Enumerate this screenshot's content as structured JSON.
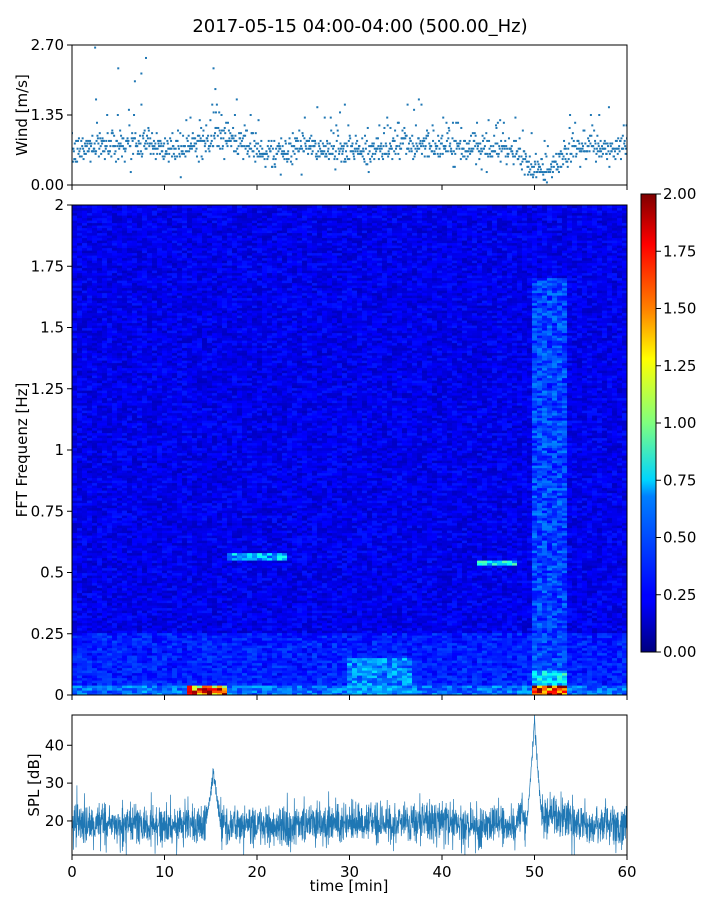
{
  "title": "2017-05-15 04:00-04:00 (500.00_Hz)",
  "colors": {
    "wind_points": "#1f77b4",
    "spl_line": "#1f77b4",
    "axes": "#000000"
  },
  "chart_data": [
    {
      "id": "wind",
      "type": "scatter",
      "ylabel": "Wind [m/s]",
      "ylim": [
        0,
        2.7
      ],
      "xlim": [
        0,
        60
      ],
      "yticks": [
        0,
        1.35,
        2.7
      ],
      "ytick_labels": [
        "0.00",
        "1.35",
        "2.70"
      ],
      "xticks": [
        0,
        10,
        20,
        30,
        40,
        50,
        60
      ],
      "xtick_labels_visible": false,
      "baseline_profile": {
        "x": [
          0,
          2,
          4,
          6,
          8,
          10,
          12,
          14,
          16,
          18,
          20,
          22,
          24,
          26,
          28,
          30,
          32,
          34,
          36,
          38,
          40,
          42,
          44,
          46,
          48,
          49,
          50,
          51,
          52,
          53,
          54,
          56,
          58,
          60
        ],
        "y": [
          0.6,
          0.75,
          0.8,
          0.8,
          0.85,
          0.7,
          0.75,
          0.8,
          0.9,
          0.85,
          0.65,
          0.6,
          0.7,
          0.75,
          0.65,
          0.7,
          0.65,
          0.75,
          0.8,
          0.75,
          0.75,
          0.7,
          0.65,
          0.7,
          0.6,
          0.45,
          0.3,
          0.25,
          0.35,
          0.5,
          0.7,
          0.75,
          0.7,
          0.7
        ]
      },
      "outliers": {
        "x": [
          2.5,
          2.6,
          5,
          6.8,
          7.5,
          8,
          15.3,
          15.5,
          29.5,
          37.5,
          57
        ],
        "y": [
          2.65,
          1.65,
          2.25,
          2.0,
          2.15,
          2.45,
          2.25,
          1.85,
          1.55,
          1.65,
          1.35
        ]
      }
    },
    {
      "id": "spectrogram",
      "type": "heatmap",
      "ylabel": "FFT Frequenz [Hz]",
      "ylim": [
        0,
        2
      ],
      "xlim": [
        0,
        60
      ],
      "yticks": [
        0,
        0.25,
        0.5,
        0.75,
        1,
        1.25,
        1.5,
        1.75,
        2
      ],
      "ytick_labels": [
        "0",
        "0.25",
        "0.5",
        "0.75",
        "1",
        "1.25",
        "1.5",
        "1.75",
        "2"
      ],
      "xticks": [
        0,
        10,
        20,
        30,
        40,
        50,
        60
      ],
      "xtick_labels_visible": false,
      "colormap": "jet",
      "colorbar": {
        "range": [
          0,
          2
        ],
        "ticks": [
          0,
          0.25,
          0.5,
          0.75,
          1,
          1.25,
          1.5,
          1.75,
          2
        ],
        "tick_labels": [
          "0.00",
          "0.25",
          "0.50",
          "0.75",
          "1.00",
          "1.25",
          "1.50",
          "1.75",
          "2.00"
        ]
      },
      "background_level": 0.2,
      "features": [
        {
          "x": [
            12.5,
            16.5
          ],
          "y": [
            0,
            0.04
          ],
          "value": 1.8
        },
        {
          "x": [
            49.5,
            53.5
          ],
          "y": [
            0,
            0.04
          ],
          "value": 1.9
        },
        {
          "x": [
            49.5,
            53.5
          ],
          "y": [
            0.04,
            0.1
          ],
          "value": 0.8
        },
        {
          "x": [
            49.5,
            53.5
          ],
          "y": [
            0.1,
            1.7
          ],
          "value": 0.45
        },
        {
          "x": [
            0,
            60
          ],
          "y": [
            0,
            0.04
          ],
          "value": 0.55
        },
        {
          "x": [
            30,
            37
          ],
          "y": [
            0,
            0.15
          ],
          "value": 0.6
        },
        {
          "x": [
            16.5,
            23
          ],
          "y": [
            0.55,
            0.58
          ],
          "value": 0.7
        },
        {
          "x": [
            44,
            48
          ],
          "y": [
            0.53,
            0.55
          ],
          "value": 0.8
        },
        {
          "x": [
            0,
            60
          ],
          "y": [
            0,
            0.25
          ],
          "value": 0.35
        }
      ]
    },
    {
      "id": "spl",
      "type": "line",
      "ylabel": "SPL [dB]",
      "xlabel": "time [min]",
      "xlim": [
        0,
        60
      ],
      "ylim": [
        11,
        48
      ],
      "yticks": [
        20,
        30,
        40
      ],
      "ytick_labels": [
        "20",
        "30",
        "40"
      ],
      "xticks": [
        0,
        10,
        20,
        30,
        40,
        50,
        60
      ],
      "xtick_labels": [
        "0",
        "10",
        "20",
        "30",
        "40",
        "50",
        "60"
      ],
      "baseline_db": 19,
      "band_db": 3,
      "peaks": [
        {
          "x": 15.3,
          "y": 33
        },
        {
          "x": 50.0,
          "y": 46
        }
      ]
    }
  ]
}
